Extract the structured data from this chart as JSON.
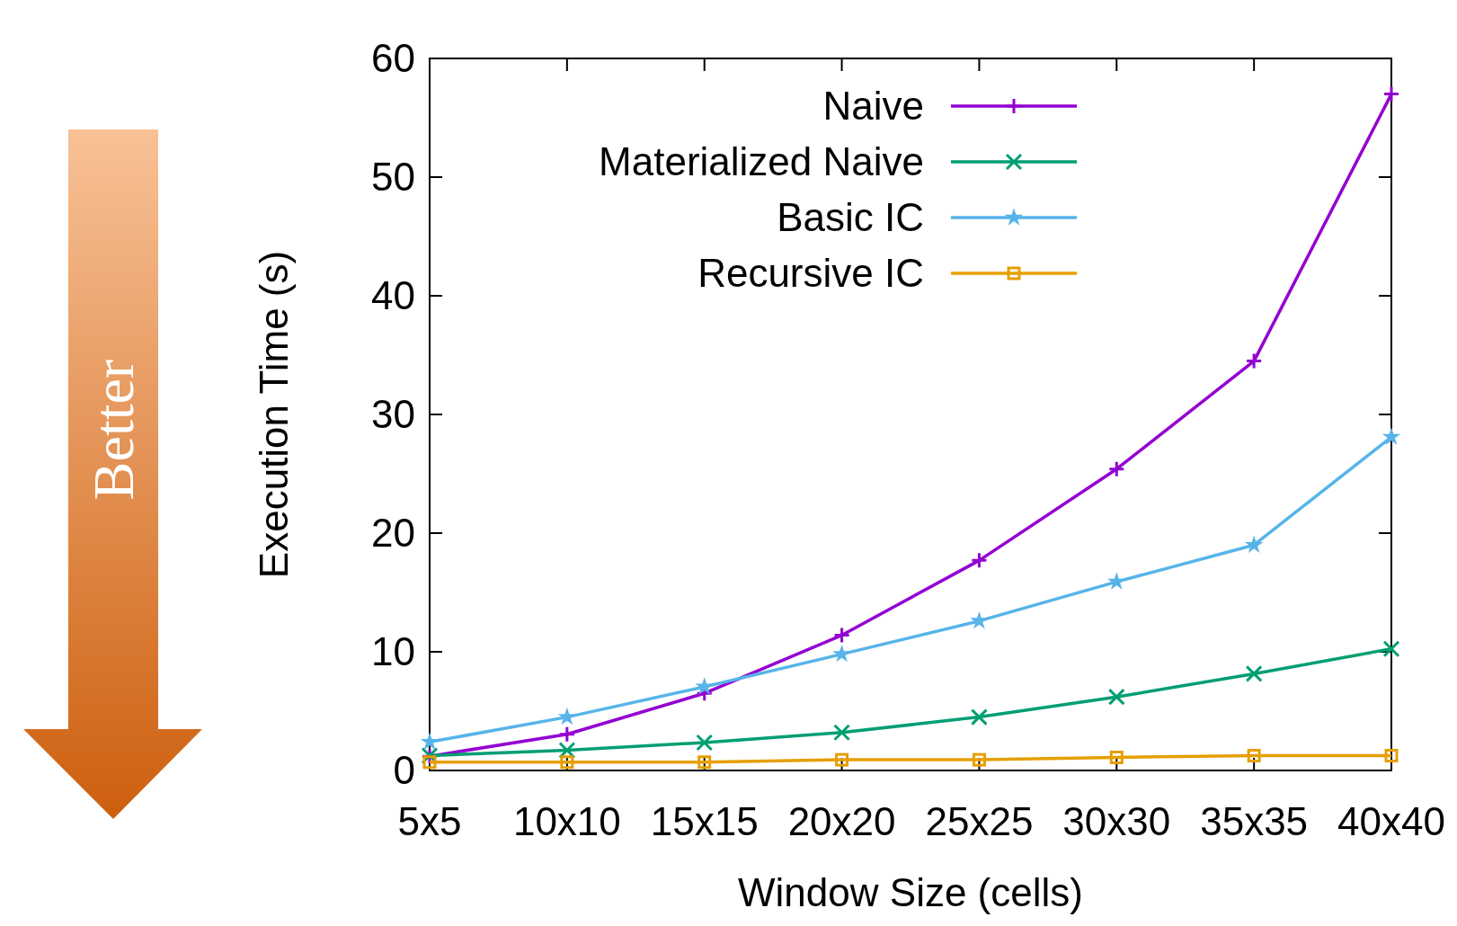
{
  "chart_data": {
    "type": "line",
    "xlabel": "Window Size (cells)",
    "ylabel": "Execution Time (s)",
    "categories": [
      "5x5",
      "10x10",
      "15x15",
      "20x20",
      "25x25",
      "30x30",
      "35x35",
      "40x40"
    ],
    "series": [
      {
        "name": "Naive",
        "color": "#9400d3",
        "marker": "cross",
        "values": [
          1.2,
          3.05,
          6.5,
          11.4,
          17.7,
          25.4,
          34.5,
          57.0
        ]
      },
      {
        "name": "Materialized Naive",
        "color": "#009e73",
        "marker": "cross",
        "values": [
          1.25,
          1.7,
          2.35,
          3.2,
          4.5,
          6.2,
          8.15,
          10.25
        ]
      },
      {
        "name": "Basic IC",
        "color": "#56b4e9",
        "marker": "star",
        "values": [
          2.4,
          4.5,
          7.05,
          9.8,
          12.6,
          15.9,
          19.0,
          28.1
        ]
      },
      {
        "name": "Recursive IC",
        "color": "#e69f00",
        "marker": "square",
        "values": [
          0.7,
          0.7,
          0.7,
          0.9,
          0.9,
          1.1,
          1.25,
          1.25
        ]
      }
    ],
    "ylim": [
      0,
      60
    ],
    "yticks": [
      0,
      10,
      20,
      30,
      40,
      50,
      60
    ],
    "grid": false,
    "legend": "top",
    "line_style": "solid",
    "annotations": [
      "Better"
    ]
  }
}
